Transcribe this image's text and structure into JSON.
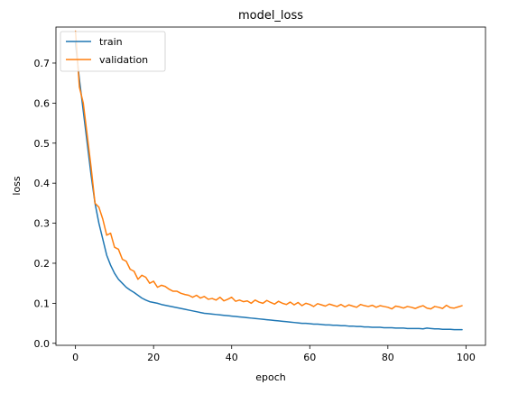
{
  "chart_data": {
    "type": "line",
    "title": "model_loss",
    "xlabel": "epoch",
    "ylabel": "loss",
    "xlim": [
      -5,
      105
    ],
    "ylim": [
      -0.005,
      0.79
    ],
    "xticks": [
      0,
      20,
      40,
      60,
      80,
      100
    ],
    "yticks": [
      0.0,
      0.1,
      0.2,
      0.3,
      0.4,
      0.5,
      0.6,
      0.7
    ],
    "grid": false,
    "legend_position": "top-left",
    "series": [
      {
        "name": "train",
        "color": "#1f77b4",
        "x": [
          0,
          1,
          2,
          3,
          4,
          5,
          6,
          7,
          8,
          9,
          10,
          11,
          12,
          13,
          14,
          15,
          16,
          17,
          18,
          19,
          20,
          21,
          22,
          23,
          24,
          25,
          26,
          27,
          28,
          29,
          30,
          31,
          32,
          33,
          34,
          35,
          36,
          37,
          38,
          39,
          40,
          41,
          42,
          43,
          44,
          45,
          46,
          47,
          48,
          49,
          50,
          51,
          52,
          53,
          54,
          55,
          56,
          57,
          58,
          59,
          60,
          61,
          62,
          63,
          64,
          65,
          66,
          67,
          68,
          69,
          70,
          71,
          72,
          73,
          74,
          75,
          76,
          77,
          78,
          79,
          80,
          81,
          82,
          83,
          84,
          85,
          86,
          87,
          88,
          89,
          90,
          91,
          92,
          93,
          94,
          95,
          96,
          97,
          98,
          99
        ],
        "y": [
          0.75,
          0.66,
          0.58,
          0.5,
          0.42,
          0.35,
          0.3,
          0.26,
          0.22,
          0.195,
          0.175,
          0.16,
          0.15,
          0.14,
          0.133,
          0.127,
          0.12,
          0.113,
          0.108,
          0.104,
          0.102,
          0.1,
          0.097,
          0.095,
          0.093,
          0.091,
          0.089,
          0.087,
          0.085,
          0.083,
          0.081,
          0.079,
          0.077,
          0.075,
          0.074,
          0.073,
          0.072,
          0.071,
          0.07,
          0.069,
          0.068,
          0.067,
          0.066,
          0.065,
          0.064,
          0.063,
          0.062,
          0.061,
          0.06,
          0.059,
          0.058,
          0.057,
          0.056,
          0.055,
          0.054,
          0.053,
          0.052,
          0.051,
          0.05,
          0.05,
          0.049,
          0.048,
          0.048,
          0.047,
          0.046,
          0.046,
          0.045,
          0.045,
          0.044,
          0.044,
          0.043,
          0.043,
          0.042,
          0.042,
          0.041,
          0.041,
          0.04,
          0.04,
          0.04,
          0.039,
          0.039,
          0.039,
          0.038,
          0.038,
          0.038,
          0.037,
          0.037,
          0.037,
          0.037,
          0.036,
          0.038,
          0.037,
          0.036,
          0.036,
          0.035,
          0.035,
          0.035,
          0.034,
          0.034,
          0.034
        ]
      },
      {
        "name": "validation",
        "color": "#ff7f0e",
        "x": [
          0,
          1,
          2,
          3,
          4,
          5,
          6,
          7,
          8,
          9,
          10,
          11,
          12,
          13,
          14,
          15,
          16,
          17,
          18,
          19,
          20,
          21,
          22,
          23,
          24,
          25,
          26,
          27,
          28,
          29,
          30,
          31,
          32,
          33,
          34,
          35,
          36,
          37,
          38,
          39,
          40,
          41,
          42,
          43,
          44,
          45,
          46,
          47,
          48,
          49,
          50,
          51,
          52,
          53,
          54,
          55,
          56,
          57,
          58,
          59,
          60,
          61,
          62,
          63,
          64,
          65,
          66,
          67,
          68,
          69,
          70,
          71,
          72,
          73,
          74,
          75,
          76,
          77,
          78,
          79,
          80,
          81,
          82,
          83,
          84,
          85,
          86,
          87,
          88,
          89,
          90,
          91,
          92,
          93,
          94,
          95,
          96,
          97,
          98,
          99
        ],
        "y": [
          0.78,
          0.64,
          0.6,
          0.52,
          0.44,
          0.35,
          0.34,
          0.31,
          0.27,
          0.275,
          0.24,
          0.235,
          0.21,
          0.205,
          0.185,
          0.18,
          0.16,
          0.17,
          0.165,
          0.15,
          0.155,
          0.14,
          0.145,
          0.142,
          0.135,
          0.13,
          0.13,
          0.125,
          0.122,
          0.12,
          0.115,
          0.12,
          0.113,
          0.117,
          0.11,
          0.112,
          0.108,
          0.115,
          0.106,
          0.11,
          0.115,
          0.105,
          0.108,
          0.104,
          0.106,
          0.1,
          0.108,
          0.103,
          0.1,
          0.107,
          0.102,
          0.098,
          0.105,
          0.1,
          0.097,
          0.103,
          0.096,
          0.102,
          0.094,
          0.1,
          0.097,
          0.092,
          0.099,
          0.096,
          0.093,
          0.098,
          0.095,
          0.092,
          0.097,
          0.091,
          0.096,
          0.093,
          0.09,
          0.097,
          0.094,
          0.092,
          0.095,
          0.09,
          0.094,
          0.092,
          0.09,
          0.086,
          0.093,
          0.091,
          0.088,
          0.092,
          0.09,
          0.087,
          0.091,
          0.094,
          0.088,
          0.086,
          0.092,
          0.09,
          0.087,
          0.095,
          0.089,
          0.088,
          0.091,
          0.094
        ]
      }
    ]
  }
}
